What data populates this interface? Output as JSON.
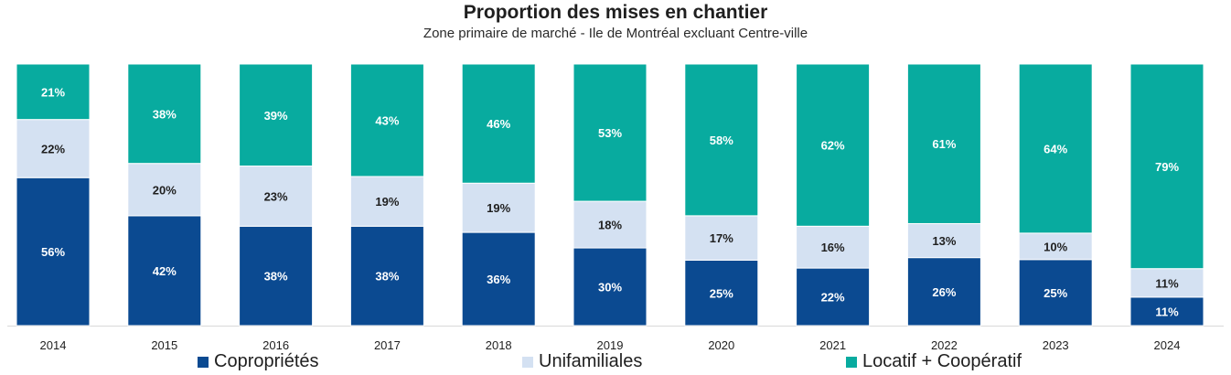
{
  "chart_data": {
    "type": "bar",
    "stacked": true,
    "title": "Proportion des mises en chantier",
    "subtitle": "Zone primaire de marché - Ile de Montréal excluant Centre-ville",
    "categories": [
      "2014",
      "2015",
      "2016",
      "2017",
      "2018",
      "2019",
      "2020",
      "2021",
      "2022",
      "2023",
      "2024"
    ],
    "series": [
      {
        "name": "Copropriétés",
        "color": "#0b4a91",
        "values": [
          56,
          42,
          38,
          38,
          36,
          30,
          25,
          22,
          26,
          25,
          11
        ]
      },
      {
        "name": "Unifamiliales",
        "color": "#d4e1f2",
        "values": [
          22,
          20,
          23,
          19,
          19,
          18,
          17,
          16,
          13,
          10,
          11
        ]
      },
      {
        "name": "Locatif + Coopératif",
        "color": "#08ab9f",
        "values": [
          21,
          38,
          39,
          43,
          46,
          53,
          58,
          62,
          61,
          64,
          79
        ]
      }
    ],
    "ylim": [
      0,
      100
    ],
    "legend_position": "bottom",
    "grid": false
  }
}
